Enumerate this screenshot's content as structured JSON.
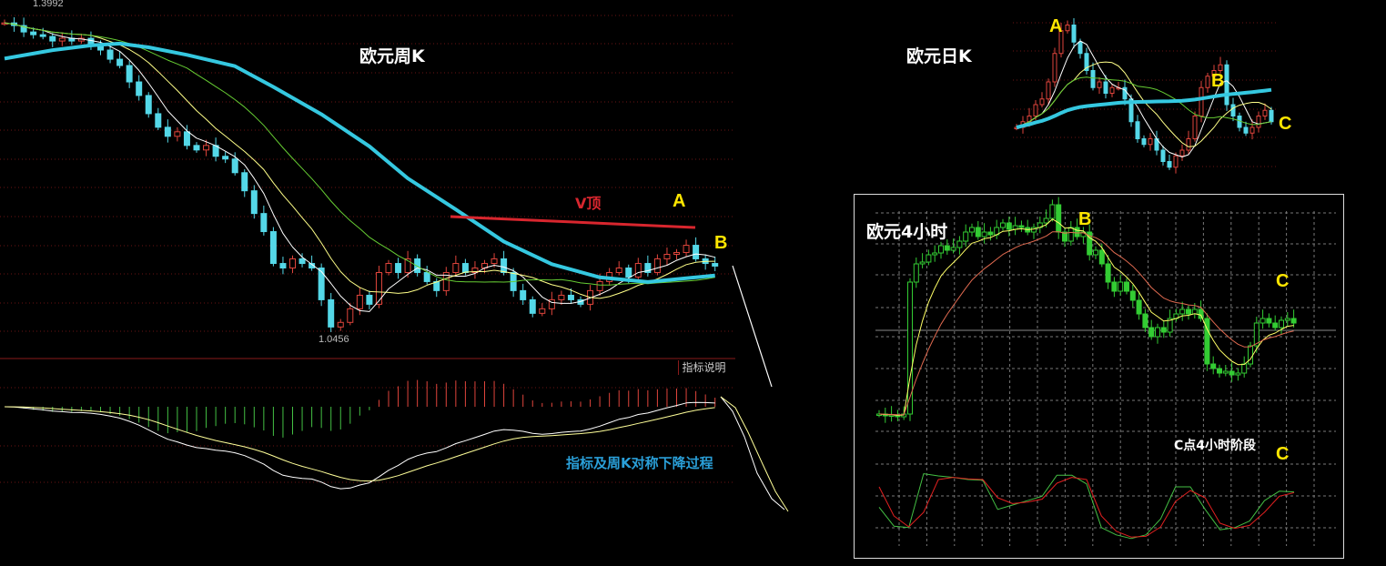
{
  "weekly": {
    "title": "欧元周K",
    "high_label": "1.3992",
    "low_label": "1.0456",
    "vtop_label": "V顶",
    "point_a": "A",
    "point_b": "B",
    "indicator_button": "指标说明",
    "caption": "指标及周K对称下降过程",
    "ylim": [
      1.02,
      1.41
    ],
    "closes": [
      1.3799,
      1.3771,
      1.3703,
      1.3674,
      1.3655,
      1.3607,
      1.3636,
      1.3607,
      1.3636,
      1.3578,
      1.3511,
      1.3414,
      1.3347,
      1.3173,
      1.3029,
      1.2836,
      1.2692,
      1.2596,
      1.2644,
      1.2499,
      1.2451,
      1.2499,
      1.2384,
      1.2355,
      1.221,
      1.2018,
      1.1777,
      1.1585,
      1.1247,
      1.1199,
      1.1296,
      1.1247,
      1.1199,
      1.0862,
      1.0573,
      1.0622,
      1.0766,
      1.091,
      1.0814,
      1.1151,
      1.1247,
      1.1151,
      1.1296,
      1.1151,
      1.1055,
      1.0959,
      1.1151,
      1.1247,
      1.1151,
      1.1199,
      1.1247,
      1.1296,
      1.1151,
      1.0959,
      1.0862,
      1.0718,
      1.0766,
      1.0862,
      1.091,
      1.0862,
      1.0814,
      1.0959,
      1.1055,
      1.1151,
      1.1199,
      1.1103,
      1.1247,
      1.1151,
      1.1296,
      1.1344,
      1.1363,
      1.144,
      1.1296,
      1.1247,
      1.1219
    ],
    "ma_periods": [
      5,
      10,
      20
    ],
    "ma_long": [
      [
        0,
        1.342
      ],
      [
        5,
        1.351
      ],
      [
        9,
        1.356
      ],
      [
        12,
        1.358
      ],
      [
        15,
        1.354
      ],
      [
        19,
        1.346
      ],
      [
        24,
        1.334
      ],
      [
        28,
        1.312
      ],
      [
        33,
        1.283
      ],
      [
        38,
        1.249
      ],
      [
        42,
        1.215
      ],
      [
        47,
        1.182
      ],
      [
        52,
        1.148
      ],
      [
        57,
        1.124
      ],
      [
        62,
        1.11
      ],
      [
        67,
        1.105
      ],
      [
        74,
        1.112
      ]
    ],
    "colors": {
      "up": "#e0453c",
      "down": "#54d8e8",
      "ma_long": "#35c8e0",
      "vtop": "#d8262e"
    }
  },
  "daily": {
    "title": "欧元日K",
    "point_a": "A",
    "point_b": "B",
    "point_c": "C",
    "closes": [
      40,
      45,
      50,
      60,
      65,
      80,
      105,
      125,
      130,
      115,
      105,
      90,
      75,
      80,
      70,
      75,
      75,
      65,
      45,
      30,
      25,
      30,
      20,
      10,
      5,
      15,
      20,
      30,
      50,
      75,
      85,
      90,
      95,
      60,
      50,
      40,
      35,
      40,
      50,
      55,
      45
    ],
    "ma_periods": [
      5,
      10,
      20
    ]
  },
  "h4": {
    "title": "欧元4小时",
    "point_b": "B",
    "point_c": "C",
    "stage_label": "C点4小时阶段",
    "stage_point_c": "C",
    "closes": [
      145,
      143,
      144,
      142,
      145,
      290,
      310,
      312,
      320,
      322,
      330,
      325,
      328,
      335,
      345,
      350,
      340,
      345,
      342,
      350,
      355,
      348,
      352,
      350,
      345,
      350,
      355,
      360,
      375,
      345,
      335,
      350,
      340,
      345,
      320,
      325,
      310,
      290,
      280,
      290,
      280,
      270,
      255,
      240,
      230,
      240,
      235,
      250,
      255,
      260,
      255,
      260,
      250,
      200,
      195,
      190,
      192,
      188,
      190,
      200,
      220,
      245,
      250,
      245,
      240,
      248,
      250,
      245
    ],
    "ma_periods": [
      6,
      14
    ],
    "stoch_k": [
      47,
      21,
      19,
      93,
      90,
      88,
      85,
      84,
      44,
      50,
      56,
      62,
      91,
      91,
      79,
      19,
      9,
      4,
      9,
      31,
      75,
      75,
      44,
      16,
      19,
      28,
      56,
      69,
      68
    ],
    "stoch_d": [
      75,
      35,
      20,
      40,
      85,
      88,
      86,
      85,
      60,
      52,
      54,
      58,
      80,
      88,
      85,
      35,
      14,
      6,
      7,
      20,
      55,
      70,
      60,
      25,
      18,
      22,
      40,
      62,
      67
    ],
    "colors": {
      "ma_fast": "#ffff66",
      "ma_slow": "#e06a50",
      "stoch_k": "#44c044",
      "stoch_d": "#e02020",
      "candle": "#33cc33"
    }
  }
}
